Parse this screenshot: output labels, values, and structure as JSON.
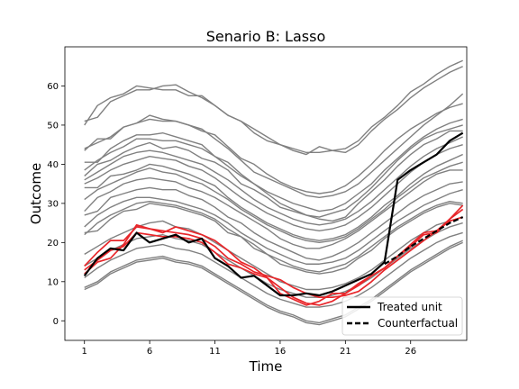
{
  "chart_data": {
    "type": "line",
    "title": "Senario B: Lasso",
    "xlabel": "Time",
    "ylabel": "Outcome",
    "xlim": [
      -0.5,
      30.3
    ],
    "ylim": [
      -5,
      70
    ],
    "xticks": [
      1,
      6,
      11,
      16,
      21,
      26
    ],
    "yticks": [
      0,
      10,
      20,
      30,
      40,
      50,
      60
    ],
    "grid": false,
    "legend": {
      "placement": "lower-right",
      "entries": [
        {
          "label": "Treated unit",
          "style": "solid",
          "color": "#000000"
        },
        {
          "label": "Counterfactual",
          "style": "dashed",
          "color": "#000000"
        }
      ]
    },
    "colors": {
      "donor": "#808080",
      "highlight": "#e8262a",
      "treated": "#000000"
    },
    "x": [
      1,
      2,
      3,
      4,
      5,
      6,
      7,
      8,
      9,
      10,
      11,
      12,
      13,
      14,
      15,
      16,
      17,
      18,
      19,
      20,
      21,
      22,
      23,
      24,
      25,
      26,
      27,
      28,
      29,
      30
    ],
    "donor_series": [
      {
        "values": [
          51.0,
          52.0,
          56.0,
          57.5,
          59.0,
          59.0,
          60.0,
          60.3,
          58.5,
          57.0,
          55.0,
          52.5,
          51.0,
          48.0,
          46.0,
          45.0,
          43.5,
          42.5,
          44.5,
          43.5,
          44.0,
          46.0,
          49.5,
          52.0,
          55.0,
          58.5,
          60.5,
          63.0,
          65.0,
          66.5
        ]
      },
      {
        "values": [
          50.0,
          55.0,
          57.0,
          58.0,
          60.0,
          59.5,
          59.0,
          59.0,
          57.5,
          57.5,
          55.0,
          52.5,
          51.0,
          49.0,
          47.0,
          45.0,
          44.0,
          43.0,
          43.0,
          43.5,
          43.0,
          45.0,
          48.5,
          51.5,
          54.0,
          57.0,
          59.5,
          61.5,
          63.5,
          65.0
        ]
      },
      {
        "values": [
          44.0,
          45.5,
          47.0,
          49.5,
          50.5,
          52.5,
          51.5,
          51.0,
          50.0,
          49.0,
          46.5,
          44.0,
          41.0,
          38.0,
          36.5,
          35.0,
          33.5,
          32.0,
          31.5,
          32.0,
          33.0,
          35.0,
          38.0,
          41.0,
          44.0,
          47.0,
          50.0,
          52.5,
          55.0,
          58.0
        ]
      },
      {
        "values": [
          43.5,
          46.5,
          46.5,
          49.5,
          50.5,
          51.5,
          51.0,
          51.0,
          50.0,
          48.5,
          47.5,
          44.5,
          41.5,
          40.0,
          37.5,
          35.5,
          34.0,
          33.0,
          32.5,
          33.0,
          34.5,
          37.0,
          40.0,
          43.5,
          46.5,
          49.0,
          51.0,
          53.0,
          54.5,
          55.5
        ]
      },
      {
        "values": [
          40.5,
          40.5,
          44.0,
          46.0,
          47.5,
          47.5,
          48.0,
          47.0,
          46.0,
          45.0,
          42.0,
          40.5,
          37.5,
          35.0,
          33.0,
          31.5,
          30.0,
          29.0,
          28.0,
          28.5,
          30.0,
          32.5,
          35.0,
          38.5,
          41.5,
          44.5,
          47.0,
          49.0,
          50.5,
          51.5
        ]
      },
      {
        "values": [
          38.5,
          41.0,
          43.0,
          44.5,
          46.5,
          46.5,
          46.0,
          46.0,
          45.0,
          44.0,
          42.0,
          39.5,
          37.0,
          35.0,
          32.5,
          30.0,
          28.5,
          27.0,
          26.5,
          27.5,
          28.5,
          31.0,
          34.0,
          37.5,
          41.0,
          44.0,
          46.5,
          48.0,
          49.0,
          50.0
        ]
      },
      {
        "values": [
          37.0,
          40.0,
          41.0,
          43.0,
          44.5,
          45.5,
          44.0,
          44.5,
          43.5,
          41.5,
          40.5,
          38.5,
          35.0,
          33.5,
          31.5,
          29.0,
          28.0,
          27.0,
          26.0,
          25.5,
          26.5,
          30.0,
          33.0,
          36.0,
          39.5,
          42.5,
          45.0,
          46.5,
          48.5,
          48.5
        ]
      },
      {
        "values": [
          36.0,
          38.0,
          40.0,
          42.0,
          43.0,
          43.5,
          43.0,
          42.0,
          41.0,
          40.0,
          38.0,
          36.0,
          33.5,
          31.0,
          29.0,
          27.5,
          26.0,
          25.0,
          24.5,
          25.0,
          26.0,
          28.0,
          30.5,
          33.5,
          36.5,
          39.5,
          42.0,
          44.0,
          45.5,
          47.0
        ]
      },
      {
        "values": [
          35.0,
          36.5,
          38.5,
          40.0,
          41.0,
          42.0,
          41.5,
          41.0,
          39.5,
          38.5,
          36.5,
          34.0,
          31.5,
          29.5,
          27.5,
          26.0,
          24.5,
          23.5,
          23.0,
          23.5,
          24.5,
          26.5,
          29.0,
          32.0,
          35.0,
          38.0,
          40.5,
          42.5,
          44.0,
          45.0
        ]
      },
      {
        "values": [
          34.0,
          34.0,
          37.0,
          37.5,
          38.5,
          40.0,
          39.5,
          38.5,
          37.5,
          36.0,
          34.5,
          31.5,
          29.0,
          27.0,
          25.0,
          23.5,
          22.0,
          21.0,
          20.5,
          21.0,
          22.0,
          24.0,
          26.5,
          29.5,
          32.0,
          35.0,
          37.5,
          39.5,
          41.0,
          42.5
        ]
      },
      {
        "values": [
          31.0,
          33.5,
          35.0,
          36.5,
          38.0,
          39.0,
          38.0,
          37.5,
          36.0,
          35.0,
          33.0,
          31.0,
          28.5,
          26.5,
          24.5,
          23.0,
          21.5,
          20.5,
          20.0,
          20.5,
          21.5,
          23.5,
          26.0,
          28.5,
          31.5,
          34.0,
          36.5,
          38.0,
          39.5,
          40.5
        ]
      },
      {
        "values": [
          28.0,
          31.5,
          33.0,
          35.0,
          36.0,
          36.5,
          36.0,
          35.5,
          34.0,
          33.0,
          31.5,
          29.5,
          27.5,
          25.5,
          23.5,
          21.0,
          19.5,
          18.5,
          18.5,
          19.5,
          21.0,
          23.0,
          25.5,
          28.0,
          30.5,
          33.0,
          35.5,
          37.5,
          38.5,
          38.5
        ]
      },
      {
        "values": [
          27.0,
          28.0,
          31.5,
          32.5,
          33.5,
          34.0,
          33.5,
          33.5,
          32.0,
          31.0,
          29.0,
          26.5,
          25.0,
          22.5,
          20.5,
          19.0,
          17.5,
          16.0,
          15.5,
          16.5,
          18.0,
          20.0,
          22.5,
          25.0,
          27.5,
          30.0,
          32.0,
          33.5,
          35.0,
          35.5
        ]
      },
      {
        "values": [
          24.0,
          27.0,
          29.0,
          30.5,
          31.5,
          31.5,
          31.0,
          30.5,
          29.5,
          28.5,
          27.0,
          25.0,
          22.5,
          20.5,
          18.5,
          17.0,
          15.5,
          14.5,
          14.5,
          15.0,
          16.0,
          18.0,
          20.5,
          23.0,
          25.5,
          27.5,
          29.5,
          31.0,
          32.5,
          33.5
        ]
      },
      {
        "values": [
          22.0,
          25.0,
          27.0,
          28.5,
          30.0,
          30.5,
          30.0,
          29.5,
          28.5,
          27.5,
          26.0,
          23.5,
          21.5,
          19.5,
          17.0,
          15.5,
          14.0,
          13.0,
          12.5,
          13.5,
          14.5,
          16.5,
          19.0,
          21.5,
          24.0,
          26.0,
          28.0,
          29.5,
          30.5,
          30.0
        ]
      },
      {
        "values": [
          22.5,
          23.0,
          26.0,
          28.0,
          28.5,
          30.0,
          29.5,
          29.0,
          28.0,
          27.0,
          25.5,
          22.5,
          21.5,
          18.5,
          17.0,
          14.5,
          13.5,
          12.5,
          12.0,
          12.5,
          13.5,
          16.0,
          18.0,
          21.0,
          23.5,
          25.5,
          27.5,
          29.0,
          30.0,
          29.5
        ]
      },
      {
        "values": [
          17.0,
          19.0,
          21.0,
          22.5,
          24.0,
          25.0,
          25.5,
          24.0,
          23.5,
          22.0,
          20.0,
          18.0,
          16.0,
          14.0,
          12.0,
          10.0,
          9.0,
          8.0,
          8.0,
          8.5,
          9.5,
          11.0,
          13.0,
          15.5,
          18.0,
          20.5,
          22.5,
          24.5,
          25.5,
          26.5
        ]
      },
      {
        "values": [
          14.0,
          16.0,
          18.0,
          19.5,
          21.0,
          21.5,
          22.0,
          21.0,
          20.5,
          19.5,
          17.5,
          15.5,
          13.5,
          11.5,
          9.5,
          8.0,
          7.0,
          6.0,
          6.0,
          6.5,
          7.5,
          9.0,
          11.0,
          13.5,
          16.0,
          18.5,
          20.5,
          22.5,
          24.0,
          25.0
        ]
      },
      {
        "values": [
          11.0,
          13.5,
          15.5,
          17.0,
          18.5,
          19.0,
          19.5,
          18.5,
          18.0,
          17.0,
          15.0,
          13.0,
          11.0,
          9.0,
          7.0,
          5.5,
          4.5,
          3.5,
          3.5,
          4.0,
          5.0,
          6.5,
          8.5,
          11.0,
          13.5,
          16.0,
          18.0,
          20.0,
          21.5,
          22.5
        ]
      },
      {
        "values": [
          8.5,
          10.0,
          12.5,
          14.0,
          15.5,
          16.0,
          16.5,
          15.5,
          15.0,
          14.0,
          12.0,
          10.0,
          8.0,
          6.0,
          4.0,
          2.5,
          1.5,
          0.0,
          -0.5,
          0.5,
          1.5,
          3.5,
          5.5,
          8.0,
          10.5,
          13.0,
          15.0,
          17.0,
          19.0,
          20.5
        ]
      },
      {
        "values": [
          8.0,
          9.5,
          12.0,
          13.5,
          15.0,
          15.5,
          16.0,
          15.0,
          14.5,
          13.5,
          11.5,
          9.5,
          7.5,
          5.5,
          3.5,
          2.0,
          1.0,
          -0.5,
          -1.0,
          0.0,
          1.0,
          3.0,
          5.0,
          7.5,
          10.0,
          12.5,
          14.5,
          16.5,
          18.5,
          20.0
        ]
      }
    ],
    "highlight_series": [
      {
        "values": [
          14.0,
          17.5,
          20.5,
          20.5,
          24.0,
          23.5,
          23.0,
          22.5,
          22.0,
          21.0,
          19.0,
          16.0,
          14.5,
          12.5,
          11.5,
          10.5,
          8.5,
          7.0,
          6.0,
          6.0,
          6.5,
          7.5,
          10.0,
          13.0,
          15.5,
          18.0,
          20.5,
          23.0,
          26.0,
          28.5
        ]
      },
      {
        "values": [
          13.0,
          15.5,
          18.0,
          19.0,
          22.5,
          22.0,
          21.5,
          21.5,
          21.0,
          20.0,
          17.5,
          14.5,
          13.5,
          12.0,
          11.0,
          8.5,
          6.0,
          4.5,
          4.0,
          5.0,
          7.0,
          9.0,
          11.5,
          13.5,
          16.5,
          19.0,
          22.0,
          22.5,
          26.0,
          29.5
        ]
      },
      {
        "values": [
          12.0,
          15.0,
          16.0,
          19.5,
          24.5,
          23.5,
          22.5,
          24.0,
          23.0,
          22.0,
          20.5,
          18.0,
          15.0,
          13.5,
          11.0,
          7.0,
          5.5,
          4.0,
          5.0,
          7.0,
          7.0,
          9.5,
          11.5,
          13.5,
          16.5,
          19.5,
          22.5,
          23.0,
          25.5,
          26.5
        ]
      }
    ],
    "treated_series": {
      "name": "Treated unit",
      "values": [
        11.5,
        16.0,
        18.5,
        18.0,
        22.5,
        20.0,
        21.0,
        22.0,
        20.0,
        21.0,
        16.0,
        14.0,
        11.0,
        11.5,
        9.0,
        6.5,
        6.5,
        7.0,
        6.5,
        7.5,
        9.0,
        10.5,
        12.0,
        15.0,
        36.0,
        38.5,
        40.5,
        42.5,
        46.0,
        48.0
      ]
    },
    "counterfactual_series": {
      "name": "Counterfactual",
      "values": [
        null,
        null,
        null,
        null,
        null,
        null,
        null,
        null,
        null,
        null,
        null,
        null,
        null,
        null,
        null,
        null,
        null,
        null,
        null,
        null,
        null,
        null,
        null,
        14.5,
        16.5,
        19.0,
        21.0,
        23.0,
        25.0,
        26.5
      ]
    }
  }
}
